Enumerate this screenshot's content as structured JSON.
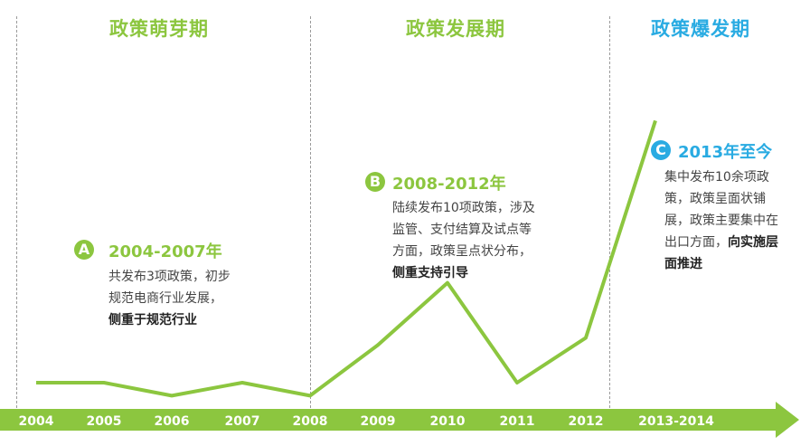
{
  "colors": {
    "green": "#8cc63f",
    "blue": "#29abe2",
    "arrow": "#8cc63f",
    "line": "#8cc63f"
  },
  "phases": [
    {
      "title": "政策萌芽期",
      "color": "#8cc63f"
    },
    {
      "title": "政策发展期",
      "color": "#8cc63f"
    },
    {
      "title": "政策爆发期",
      "color": "#29abe2"
    }
  ],
  "stages": [
    {
      "badge": "A",
      "period": "2004-2007年",
      "lines": [
        "共发布3项政策，初步",
        "规范电商行业发展，"
      ],
      "emphasis": "侧重于规范行业"
    },
    {
      "badge": "B",
      "period": "2008-2012年",
      "lines": [
        "陆续发布10项政策，涉及",
        "监管、支付结算及试点等",
        "方面，政策呈点状分布，"
      ],
      "emphasis": "侧重支持引导"
    },
    {
      "badge": "C",
      "period": "2013年至今",
      "lines": [
        "集中发布10余项政",
        "策，政策呈面状铺",
        "展，政策主要集中在"
      ],
      "tail_plain": "出口方面，",
      "tail_bold": "向实施层",
      "last_line": "面推进"
    }
  ],
  "chart_data": {
    "type": "line",
    "x": [
      "2004",
      "2005",
      "2006",
      "2007",
      "2008",
      "2009",
      "2010",
      "2011",
      "2012",
      "2013-2014"
    ],
    "y_relative": [
      0.06,
      0.06,
      -0.03,
      0.06,
      -0.03,
      0.32,
      0.75,
      0.06,
      0.37,
      1.87
    ],
    "title": "",
    "xlabel": "",
    "ylabel": "",
    "ylim": [
      -0.1,
      2.0
    ],
    "grid": false,
    "legend": "none"
  }
}
